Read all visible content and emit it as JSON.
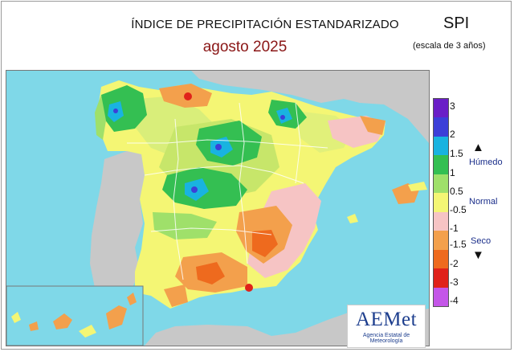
{
  "header": {
    "title": "ÍNDICE DE PRECIPITACIÓN ESTANDARIZADO",
    "subtitle": "agosto  2025",
    "index_name": "SPI",
    "scale_note": "(escala de 3 años)"
  },
  "legend": {
    "ticks": [
      "3",
      "2",
      "1.5",
      "1",
      "0.5",
      "-0.5",
      "-1",
      "-1.5",
      "-2",
      "-3",
      "-4"
    ],
    "colors": [
      "#6a1ec7",
      "#3c3fd8",
      "#19b3e0",
      "#34bf52",
      "#9fe06a",
      "#f4f674",
      "#f6c4c4",
      "#f3a04c",
      "#ee6a1e",
      "#e0221a",
      "#c456e8"
    ],
    "wet_label": "Húmedo",
    "normal_label": "Normal",
    "dry_label": "Seco"
  },
  "colors": {
    "sea": "#7fd8e8",
    "neighbour_land": "#c8c8c8",
    "borders": "#ffffff",
    "title_accent": "#8a1616",
    "legend_text": "#1a2e8a"
  },
  "logo": {
    "text": "AEMet",
    "subtext": "Agencia Estatal de Meteorología"
  }
}
